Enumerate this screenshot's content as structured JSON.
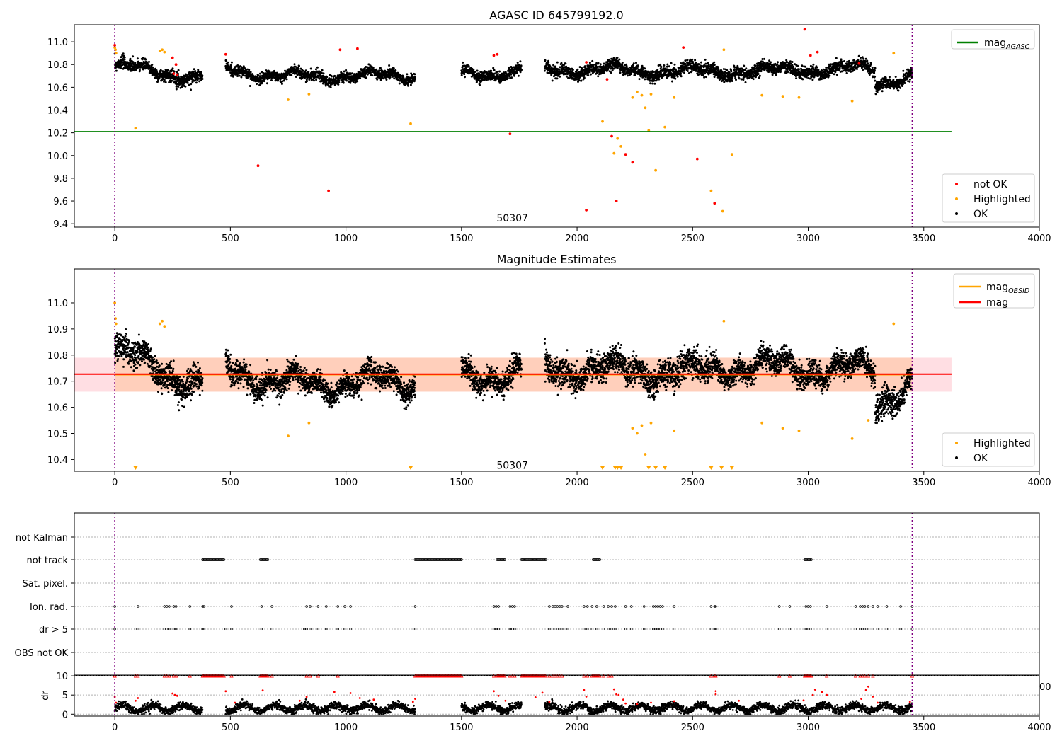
{
  "figure_title": "",
  "chart_data": [
    {
      "id": "agasc",
      "type": "scatter",
      "title": "AGASC ID 645799192.0",
      "xlabel": "",
      "ylabel": "",
      "xlim": [
        -175,
        4000
      ],
      "ylim": [
        9.37,
        11.15
      ],
      "xticks": [
        0,
        500,
        1000,
        1500,
        2000,
        2500,
        3000,
        3500,
        4000
      ],
      "yticks": [
        9.4,
        9.6,
        9.8,
        10.0,
        10.2,
        10.4,
        10.6,
        10.8,
        11.0
      ],
      "ytick_labels": [
        "9.4",
        "9.6",
        "9.8",
        "10.0",
        "10.2",
        "10.4",
        "10.6",
        "10.8",
        "11.0"
      ],
      "hlines": [
        {
          "name": "mag",
          "subscript": "AGASC",
          "y": 10.21,
          "x0": -175,
          "x1": 3620,
          "color": "#008000"
        }
      ],
      "vlines": [
        0,
        3450
      ],
      "annotation": {
        "text": "50307",
        "x": 1720,
        "y": 9.42
      },
      "legend_lines": [
        {
          "name": "mag",
          "subscript": "AGASC",
          "color": "#008000"
        }
      ],
      "legend_markers": [
        {
          "name": "not OK",
          "color": "#ff0000"
        },
        {
          "name": "Highlighted",
          "color": "#ffa500"
        },
        {
          "name": "OK",
          "color": "#000000"
        }
      ],
      "ok_segments": [
        [
          0,
          380,
          10.79,
          0.06,
          10.68
        ],
        [
          480,
          740,
          10.77,
          0.05,
          10.68
        ],
        [
          740,
          1300,
          10.7,
          0.05,
          10.7
        ],
        [
          1500,
          1760,
          10.71,
          0.05,
          10.74
        ],
        [
          1860,
          2590,
          10.76,
          0.06,
          10.74
        ],
        [
          2590,
          3290,
          10.74,
          0.06,
          10.76
        ],
        [
          3290,
          3450,
          10.62,
          0.06,
          10.72
        ]
      ],
      "highlighted": [
        [
          0,
          10.95
        ],
        [
          3,
          10.93
        ],
        [
          5,
          10.9
        ],
        [
          90,
          10.24
        ],
        [
          195,
          10.92
        ],
        [
          205,
          10.93
        ],
        [
          215,
          10.91
        ],
        [
          750,
          10.49
        ],
        [
          840,
          10.54
        ],
        [
          1280,
          10.28
        ],
        [
          2110,
          10.3
        ],
        [
          2160,
          10.02
        ],
        [
          2175,
          10.15
        ],
        [
          2190,
          10.08
        ],
        [
          2240,
          10.51
        ],
        [
          2260,
          10.56
        ],
        [
          2280,
          10.53
        ],
        [
          2295,
          10.42
        ],
        [
          2310,
          10.22
        ],
        [
          2320,
          10.54
        ],
        [
          2340,
          9.87
        ],
        [
          2380,
          10.25
        ],
        [
          2420,
          10.51
        ],
        [
          2580,
          9.69
        ],
        [
          2630,
          9.51
        ],
        [
          2635,
          10.93
        ],
        [
          2670,
          10.01
        ],
        [
          2800,
          10.53
        ],
        [
          2890,
          10.52
        ],
        [
          2960,
          10.51
        ],
        [
          3190,
          10.48
        ],
        [
          3370,
          10.9
        ]
      ],
      "not_ok": [
        [
          0,
          10.97
        ],
        [
          250,
          10.86
        ],
        [
          255,
          10.72
        ],
        [
          265,
          10.8
        ],
        [
          270,
          10.71
        ],
        [
          480,
          10.89
        ],
        [
          620,
          9.91
        ],
        [
          925,
          9.69
        ],
        [
          975,
          10.93
        ],
        [
          1050,
          10.94
        ],
        [
          1640,
          10.88
        ],
        [
          1655,
          10.89
        ],
        [
          1710,
          10.19
        ],
        [
          2040,
          9.52
        ],
        [
          2040,
          10.82
        ],
        [
          2130,
          10.67
        ],
        [
          2150,
          10.17
        ],
        [
          2170,
          9.6
        ],
        [
          2210,
          10.01
        ],
        [
          2240,
          9.94
        ],
        [
          2460,
          10.95
        ],
        [
          2520,
          9.97
        ],
        [
          2595,
          9.58
        ],
        [
          2985,
          11.11
        ],
        [
          3010,
          10.88
        ],
        [
          3040,
          10.91
        ],
        [
          3220,
          10.81
        ]
      ]
    },
    {
      "id": "estimates",
      "type": "scatter",
      "title": "Magnitude Estimates",
      "xlabel": "",
      "ylabel": "",
      "xlim": [
        -175,
        4000
      ],
      "ylim": [
        10.355,
        11.13
      ],
      "xticks": [
        0,
        500,
        1000,
        1500,
        2000,
        2500,
        3000,
        3500,
        4000
      ],
      "yticks": [
        10.4,
        10.5,
        10.6,
        10.7,
        10.8,
        10.9,
        11.0
      ],
      "ytick_labels": [
        "10.4",
        "10.5",
        "10.6",
        "10.7",
        "10.8",
        "10.9",
        "11.0"
      ],
      "band": {
        "y0": 10.66,
        "y1": 10.79,
        "x0": -175,
        "x1": 3620,
        "color": "#ffb6c1"
      },
      "band_obsid": {
        "y0": 10.66,
        "y1": 10.79,
        "x0": 0,
        "x1": 3450,
        "color": "#ffc39a"
      },
      "hlines": [
        {
          "name": "mag",
          "subscript": "OBSID",
          "y": 10.725,
          "x0": 0,
          "x1": 3450,
          "color": "#ffa500"
        },
        {
          "name": "mag",
          "subscript": "",
          "y": 10.727,
          "x0": -175,
          "x1": 3620,
          "color": "#ff0000"
        }
      ],
      "vlines": [
        0,
        3450
      ],
      "annotation": {
        "text": "50307",
        "x": 1720,
        "y": 10.37
      },
      "legend_lines": [
        {
          "name": "mag",
          "subscript": "OBSID",
          "color": "#ffa500"
        },
        {
          "name": "mag",
          "subscript": "",
          "color": "#ff0000"
        }
      ],
      "legend_markers": [
        {
          "name": "Highlighted",
          "color": "#ffa500"
        },
        {
          "name": "OK",
          "color": "#000000"
        }
      ],
      "ok_segments": [
        [
          0,
          380,
          10.81,
          0.06,
          10.68
        ],
        [
          480,
          740,
          10.76,
          0.05,
          10.68
        ],
        [
          740,
          1300,
          10.69,
          0.05,
          10.7
        ],
        [
          1500,
          1760,
          10.71,
          0.05,
          10.74
        ],
        [
          1860,
          2590,
          10.75,
          0.06,
          10.73
        ],
        [
          2590,
          3290,
          10.76,
          0.05,
          10.74
        ],
        [
          3290,
          3450,
          10.6,
          0.06,
          10.72
        ]
      ],
      "highlighted": [
        [
          0,
          11.0
        ],
        [
          3,
          10.94
        ],
        [
          5,
          10.92
        ],
        [
          195,
          10.92
        ],
        [
          205,
          10.93
        ],
        [
          215,
          10.91
        ],
        [
          750,
          10.49
        ],
        [
          840,
          10.54
        ],
        [
          2240,
          10.52
        ],
        [
          2260,
          10.5
        ],
        [
          2280,
          10.53
        ],
        [
          2295,
          10.42
        ],
        [
          2320,
          10.54
        ],
        [
          2420,
          10.51
        ],
        [
          2635,
          10.93
        ],
        [
          2800,
          10.54
        ],
        [
          2890,
          10.52
        ],
        [
          2960,
          10.51
        ],
        [
          3190,
          10.48
        ],
        [
          3260,
          10.55
        ],
        [
          3370,
          10.92
        ]
      ],
      "below_limit": [
        90,
        1280,
        2110,
        2165,
        2175,
        2190,
        2310,
        2340,
        2380,
        2580,
        2625,
        2670
      ]
    },
    {
      "id": "flags",
      "type": "scatter",
      "title": "",
      "xlabel": "",
      "ylabel": "",
      "xlim": [
        -175,
        4000
      ],
      "rows": [
        "not Kalman",
        "not track",
        "Sat. pixel.",
        "Ion. rad.",
        "dr > 5",
        "OBS not OK"
      ],
      "vlines": [
        0,
        3450
      ],
      "not_track_ranges": [
        [
          380,
          475
        ],
        [
          630,
          665
        ],
        [
          1300,
          1500
        ],
        [
          1655,
          1690
        ],
        [
          1760,
          1865
        ],
        [
          2070,
          2100
        ],
        [
          2985,
          3015
        ]
      ],
      "ion_points": [
        0,
        100,
        215,
        225,
        235,
        255,
        265,
        325,
        380,
        385,
        505,
        635,
        680,
        830,
        845,
        880,
        915,
        965,
        995,
        1020,
        1300,
        1640,
        1650,
        1660,
        1710,
        1720,
        1730,
        1880,
        1895,
        1905,
        1915,
        1925,
        1935,
        1960,
        2030,
        2045,
        2065,
        2085,
        2115,
        2135,
        2150,
        2165,
        2210,
        2235,
        2290,
        2330,
        2340,
        2350,
        2360,
        2370,
        2420,
        2580,
        2595,
        2600,
        2875,
        2920,
        2990,
        3000,
        3010,
        3080,
        3205,
        3225,
        3235,
        3245,
        3260,
        3280,
        3300,
        3340,
        3400,
        3450
      ],
      "dr5_points": [
        0,
        90,
        100,
        215,
        225,
        235,
        255,
        265,
        325,
        380,
        385,
        480,
        505,
        635,
        680,
        820,
        830,
        845,
        880,
        915,
        965,
        995,
        1020,
        1300,
        1640,
        1650,
        1660,
        1710,
        1720,
        1730,
        1880,
        1895,
        1905,
        1915,
        1925,
        1935,
        1960,
        2030,
        2045,
        2065,
        2085,
        2115,
        2135,
        2150,
        2165,
        2210,
        2235,
        2290,
        2330,
        2340,
        2350,
        2360,
        2370,
        2420,
        2580,
        2595,
        2600,
        2875,
        2920,
        2990,
        3000,
        3010,
        3080,
        3205,
        3225,
        3235,
        3245,
        3260,
        3280,
        3300,
        3340,
        3400,
        3450
      ]
    },
    {
      "id": "dr",
      "type": "scatter",
      "title": "",
      "xlabel": "",
      "ylabel": "dr",
      "xlim": [
        -175,
        4000
      ],
      "ylim": [
        -0.5,
        10.2
      ],
      "xticks": [
        0,
        500,
        1000,
        1500,
        2000,
        2500,
        3000,
        3500,
        4000
      ],
      "yticks": [
        0,
        5,
        10
      ],
      "ytick_labels": [
        "0",
        "5",
        "10"
      ],
      "vlines": [
        0,
        3450
      ],
      "clipped_tick_label": "00",
      "ok_segments": [
        [
          0,
          380
        ],
        [
          480,
          740
        ],
        [
          740,
          1300
        ],
        [
          1500,
          1760
        ],
        [
          1860,
          2590
        ],
        [
          2590,
          3290
        ],
        [
          3290,
          3450
        ]
      ],
      "high_ranges": [
        [
          380,
          475
        ],
        [
          630,
          665
        ],
        [
          1300,
          1500
        ],
        [
          1655,
          1690
        ],
        [
          1760,
          1865
        ],
        [
          2070,
          2100
        ],
        [
          2985,
          3015
        ]
      ],
      "high_points": [
        0,
        90,
        100,
        215,
        225,
        235,
        255,
        265,
        325,
        505,
        680,
        830,
        845,
        880,
        965,
        1640,
        1650,
        1660,
        1710,
        1720,
        1730,
        1880,
        1895,
        1905,
        1915,
        1925,
        1935,
        2030,
        2045,
        2065,
        2115,
        2135,
        2150,
        2580,
        2595,
        2600,
        2875,
        2920,
        3080,
        3205,
        3225,
        3235,
        3245,
        3260,
        3280,
        3450
      ],
      "mid_points": [
        [
          0,
          4.5
        ],
        [
          5,
          3.0
        ],
        [
          90,
          3.5
        ],
        [
          100,
          4.2
        ],
        [
          250,
          5.4
        ],
        [
          260,
          5.0
        ],
        [
          270,
          4.8
        ],
        [
          480,
          6.0
        ],
        [
          520,
          3.0
        ],
        [
          640,
          6.2
        ],
        [
          800,
          3.5
        ],
        [
          830,
          4.5
        ],
        [
          950,
          5.8
        ],
        [
          1020,
          5.5
        ],
        [
          1060,
          4.2
        ],
        [
          1120,
          3.8
        ],
        [
          1290,
          3.2
        ],
        [
          1300,
          4.0
        ],
        [
          1640,
          6.0
        ],
        [
          1660,
          4.8
        ],
        [
          1690,
          3.5
        ],
        [
          1820,
          4.4
        ],
        [
          1850,
          5.6
        ],
        [
          1880,
          3.2
        ],
        [
          2030,
          6.3
        ],
        [
          2040,
          4.6
        ],
        [
          2160,
          6.5
        ],
        [
          2170,
          5.2
        ],
        [
          2180,
          5.0
        ],
        [
          2200,
          3.8
        ],
        [
          2210,
          2.8
        ],
        [
          2260,
          2.6
        ],
        [
          2320,
          3.0
        ],
        [
          2420,
          3.4
        ],
        [
          2600,
          6.0
        ],
        [
          2600,
          5.2
        ],
        [
          2700,
          3.5
        ],
        [
          2980,
          3.6
        ],
        [
          3020,
          5.0
        ],
        [
          3030,
          6.4
        ],
        [
          3060,
          5.8
        ],
        [
          3080,
          5.0
        ],
        [
          3230,
          4.0
        ],
        [
          3250,
          6.3
        ],
        [
          3260,
          7.2
        ],
        [
          3280,
          4.6
        ],
        [
          3300,
          3.0
        ],
        [
          3440,
          3.2
        ]
      ]
    }
  ]
}
